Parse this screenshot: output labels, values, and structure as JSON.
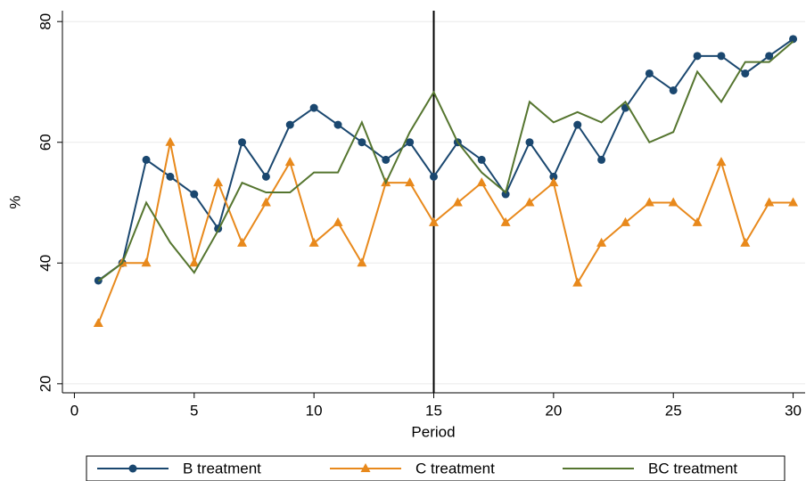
{
  "chart_data": {
    "type": "line",
    "x": [
      1,
      2,
      3,
      4,
      5,
      6,
      7,
      8,
      9,
      10,
      11,
      12,
      13,
      14,
      15,
      16,
      17,
      18,
      19,
      20,
      21,
      22,
      23,
      24,
      25,
      26,
      27,
      28,
      29,
      30
    ],
    "series": [
      {
        "name": "B treatment",
        "color": "#1a476f",
        "marker": "circle",
        "values": [
          37.1,
          40,
          57.1,
          54.3,
          51.4,
          45.7,
          60,
          54.3,
          62.9,
          65.7,
          62.9,
          60,
          57.1,
          60,
          54.3,
          60,
          57.1,
          51.4,
          60,
          54.3,
          62.9,
          57.1,
          65.7,
          71.4,
          68.6,
          74.3,
          74.3,
          71.4,
          74.3,
          77.1
        ]
      },
      {
        "name": "C treatment",
        "color": "#e8891c",
        "marker": "triangle",
        "values": [
          30,
          40,
          40,
          60,
          40,
          53.3,
          43.3,
          50,
          56.7,
          43.3,
          46.7,
          40,
          53.3,
          53.3,
          46.7,
          50,
          53.3,
          46.7,
          50,
          53.3,
          36.7,
          43.3,
          46.7,
          50,
          50,
          46.7,
          56.7,
          43.3,
          50,
          50
        ]
      },
      {
        "name": "BC treatment",
        "color": "#55752f",
        "marker": "none",
        "values": [
          37,
          40,
          50,
          43.4,
          38.4,
          45.4,
          53.3,
          51.7,
          51.7,
          55,
          55,
          63.3,
          53.3,
          61.7,
          68.3,
          60,
          55,
          51.7,
          66.7,
          63.3,
          65,
          63.3,
          66.7,
          60,
          61.7,
          71.7,
          66.7,
          73.3,
          73.3,
          76.7
        ]
      }
    ],
    "xlabel": "Period",
    "ylabel": "%",
    "xlim": [
      -0.5,
      30.5
    ],
    "ylim": [
      18.5,
      81.8
    ],
    "xticks": [
      0,
      5,
      10,
      15,
      20,
      25,
      30
    ],
    "yticks": [
      20,
      40,
      60,
      80
    ],
    "vline": 15,
    "grid": true,
    "legend": "bottom"
  }
}
